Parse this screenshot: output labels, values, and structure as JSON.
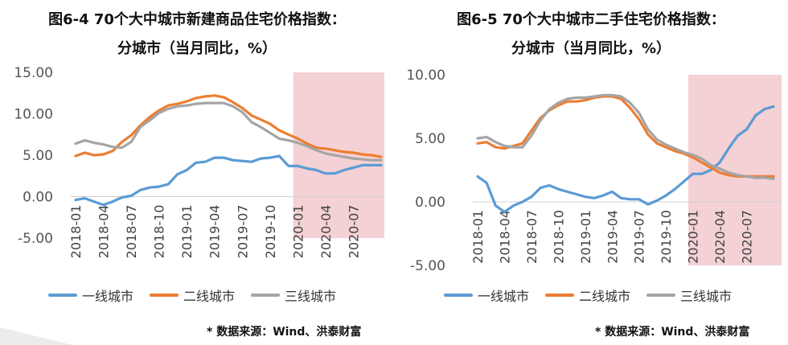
{
  "charts": [
    {
      "title_line1": "图6-4 70个大中城市新建商品住宅价格指数：",
      "title_line2": "分城市（当月同比，%）",
      "source": "* 数据来源：Wind、洪泰财富",
      "legend": [
        "一线城市",
        "二线城市",
        "三线城市"
      ]
    },
    {
      "title_line1": "图6-5 70个大中城市二手住宅价格指数：",
      "title_line2": "分城市（当月同比，%）",
      "source": "* 数据来源：Wind、洪泰财富",
      "legend": [
        "一线城市",
        "二线城市",
        "三线城市"
      ]
    }
  ],
  "chart_data": [
    {
      "type": "line",
      "title": "图6-4 70个大中城市新建商品住宅价格指数：分城市（当月同比，%）",
      "xlabel": "",
      "ylabel": "",
      "x": [
        "2018-01",
        "2018-02",
        "2018-03",
        "2018-04",
        "2018-05",
        "2018-06",
        "2018-07",
        "2018-08",
        "2018-09",
        "2018-10",
        "2018-11",
        "2018-12",
        "2019-01",
        "2019-02",
        "2019-03",
        "2019-04",
        "2019-05",
        "2019-06",
        "2019-07",
        "2019-08",
        "2019-09",
        "2019-10",
        "2019-11",
        "2019-12",
        "2020-01",
        "2020-02",
        "2020-03",
        "2020-04",
        "2020-05",
        "2020-06",
        "2020-07",
        "2020-08",
        "2020-09",
        "2020-10"
      ],
      "x_tick_labels": [
        "2018-01",
        "2018-04",
        "2018-07",
        "2018-10",
        "2019-01",
        "2019-04",
        "2019-07",
        "2019-10",
        "2020-01",
        "2020-04",
        "2020-07"
      ],
      "y_ticks": [
        "15.00",
        "10.00",
        "5.00",
        "0.00",
        "-5.00"
      ],
      "ylim": [
        -5,
        15
      ],
      "shaded_region": {
        "from": "2020-01",
        "to": "2020-10",
        "color": "#f2c9cc"
      },
      "series": [
        {
          "name": "一线城市",
          "color": "#5b9bd5",
          "values": [
            -0.4,
            -0.2,
            -0.6,
            -1.0,
            -0.6,
            -0.1,
            0.1,
            0.8,
            1.1,
            1.2,
            1.5,
            2.7,
            3.2,
            4.1,
            4.2,
            4.7,
            4.7,
            4.4,
            4.3,
            4.2,
            4.6,
            4.7,
            4.9,
            3.7,
            3.7,
            3.4,
            3.2,
            2.8,
            2.8,
            3.2,
            3.5,
            3.8,
            3.8,
            3.8
          ]
        },
        {
          "name": "二线城市",
          "color": "#ed7d31",
          "values": [
            4.9,
            5.3,
            5.0,
            5.1,
            5.5,
            6.6,
            7.4,
            8.6,
            9.6,
            10.4,
            11.0,
            11.2,
            11.5,
            11.9,
            12.1,
            12.2,
            12.0,
            11.4,
            10.7,
            9.8,
            9.3,
            8.8,
            8.0,
            7.5,
            7.0,
            6.4,
            5.9,
            5.8,
            5.6,
            5.4,
            5.3,
            5.1,
            5.0,
            4.8
          ]
        },
        {
          "name": "三线城市",
          "color": "#a5a5a5",
          "values": [
            6.4,
            6.8,
            6.5,
            6.3,
            6.0,
            5.9,
            6.6,
            8.4,
            9.2,
            10.1,
            10.6,
            10.9,
            11.0,
            11.2,
            11.3,
            11.3,
            11.3,
            10.9,
            10.2,
            9.0,
            8.4,
            7.7,
            7.0,
            6.8,
            6.5,
            6.1,
            5.6,
            5.2,
            5.0,
            4.8,
            4.6,
            4.5,
            4.4,
            4.4
          ]
        }
      ]
    },
    {
      "type": "line",
      "title": "图6-5 70个大中城市二手住宅价格指数：分城市（当月同比，%）",
      "xlabel": "",
      "ylabel": "",
      "x": [
        "2018-01",
        "2018-02",
        "2018-03",
        "2018-04",
        "2018-05",
        "2018-06",
        "2018-07",
        "2018-08",
        "2018-09",
        "2018-10",
        "2018-11",
        "2018-12",
        "2019-01",
        "2019-02",
        "2019-03",
        "2019-04",
        "2019-05",
        "2019-06",
        "2019-07",
        "2019-08",
        "2019-09",
        "2019-10",
        "2019-11",
        "2019-12",
        "2020-01",
        "2020-02",
        "2020-03",
        "2020-04",
        "2020-05",
        "2020-06",
        "2020-07",
        "2020-08",
        "2020-09",
        "2020-10"
      ],
      "x_tick_labels": [
        "2018-01",
        "2018-04",
        "2018-07",
        "2018-10",
        "2019-01",
        "2019-04",
        "2019-07",
        "2019-10",
        "2020-01",
        "2020-04",
        "2020-07"
      ],
      "y_ticks": [
        "10.00",
        "5.00",
        "0.00",
        "-5.00"
      ],
      "ylim": [
        -5,
        10
      ],
      "shaded_region": {
        "from": "2020-01",
        "to": "2020-10",
        "color": "#f2c9cc"
      },
      "series": [
        {
          "name": "一线城市",
          "color": "#5b9bd5",
          "values": [
            2.0,
            1.5,
            -0.3,
            -0.8,
            -0.3,
            0.0,
            0.4,
            1.1,
            1.3,
            1.0,
            0.8,
            0.6,
            0.4,
            0.3,
            0.5,
            0.8,
            0.3,
            0.2,
            0.2,
            -0.2,
            0.1,
            0.5,
            1.0,
            1.6,
            2.2,
            2.2,
            2.5,
            3.1,
            4.2,
            5.2,
            5.7,
            6.8,
            7.3,
            7.5
          ]
        },
        {
          "name": "二线城市",
          "color": "#ed7d31",
          "values": [
            4.6,
            4.7,
            4.3,
            4.2,
            4.4,
            4.6,
            5.6,
            6.6,
            7.2,
            7.6,
            7.9,
            7.9,
            8.0,
            8.2,
            8.3,
            8.3,
            8.1,
            7.4,
            6.5,
            5.3,
            4.6,
            4.3,
            4.0,
            3.8,
            3.5,
            3.1,
            2.7,
            2.3,
            2.1,
            2.0,
            2.0,
            2.0,
            2.0,
            2.0
          ]
        },
        {
          "name": "三线城市",
          "color": "#a5a5a5",
          "values": [
            5.0,
            5.1,
            4.7,
            4.4,
            4.3,
            4.3,
            5.2,
            6.4,
            7.3,
            7.8,
            8.1,
            8.2,
            8.2,
            8.3,
            8.4,
            8.4,
            8.3,
            7.8,
            7.0,
            5.7,
            4.9,
            4.5,
            4.2,
            3.9,
            3.7,
            3.4,
            2.9,
            2.6,
            2.3,
            2.1,
            2.0,
            1.9,
            1.9,
            1.8
          ]
        }
      ]
    }
  ]
}
